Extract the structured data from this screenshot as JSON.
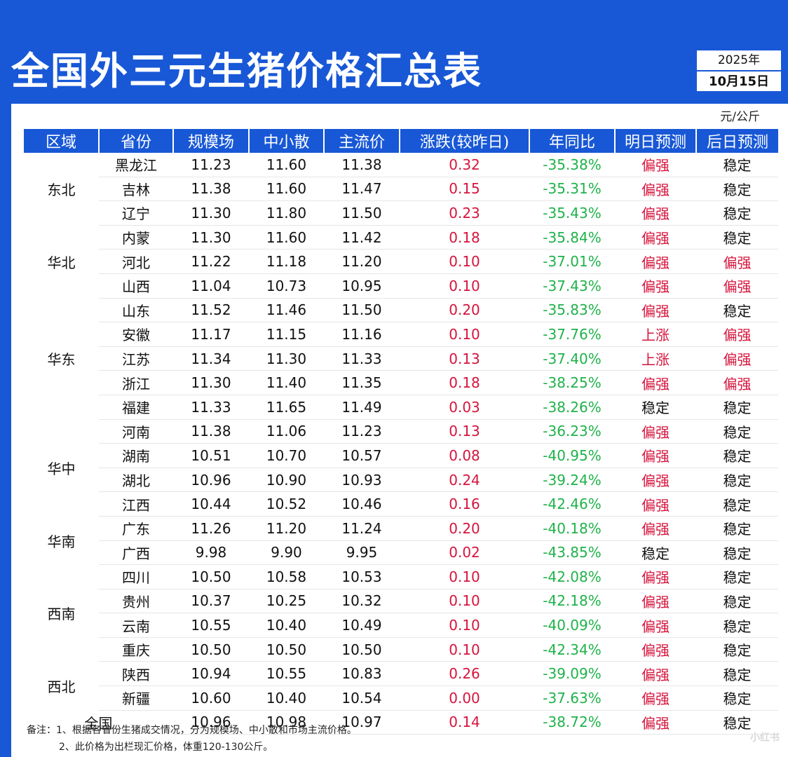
{
  "title": "全国外三元生猪价格汇总表",
  "date": {
    "year": "2025年",
    "day": "10月15日"
  },
  "unit": "元/公斤",
  "headers": [
    "区域",
    "省份",
    "规模场",
    "中小散",
    "主流价",
    "涨跌(较昨日)",
    "年同比",
    "明日预测",
    "后日预测"
  ],
  "regions": [
    {
      "name": "东北",
      "start": 0,
      "span": 3
    },
    {
      "name": "华北",
      "start": 3,
      "span": 3
    },
    {
      "name": "华东",
      "start": 6,
      "span": 5
    },
    {
      "name": "华中",
      "start": 11,
      "span": 4
    },
    {
      "name": "华南",
      "start": 15,
      "span": 2
    },
    {
      "name": "西南",
      "start": 17,
      "span": 4
    },
    {
      "name": "西北",
      "start": 21,
      "span": 2
    }
  ],
  "rows": [
    {
      "province": "黑龙江",
      "scale": "11.23",
      "small": "11.60",
      "main": "11.38",
      "change": "0.32",
      "yoy": "-35.38%",
      "tomorrow": "偏强",
      "after": "稳定"
    },
    {
      "province": "吉林",
      "scale": "11.38",
      "small": "11.60",
      "main": "11.47",
      "change": "0.15",
      "yoy": "-35.31%",
      "tomorrow": "偏强",
      "after": "稳定"
    },
    {
      "province": "辽宁",
      "scale": "11.30",
      "small": "11.80",
      "main": "11.50",
      "change": "0.23",
      "yoy": "-35.43%",
      "tomorrow": "偏强",
      "after": "稳定"
    },
    {
      "province": "内蒙",
      "scale": "11.30",
      "small": "11.60",
      "main": "11.42",
      "change": "0.18",
      "yoy": "-35.84%",
      "tomorrow": "偏强",
      "after": "稳定"
    },
    {
      "province": "河北",
      "scale": "11.22",
      "small": "11.18",
      "main": "11.20",
      "change": "0.10",
      "yoy": "-37.01%",
      "tomorrow": "偏强",
      "after": "偏强"
    },
    {
      "province": "山西",
      "scale": "11.04",
      "small": "10.73",
      "main": "10.95",
      "change": "0.10",
      "yoy": "-37.43%",
      "tomorrow": "偏强",
      "after": "偏强"
    },
    {
      "province": "山东",
      "scale": "11.52",
      "small": "11.46",
      "main": "11.50",
      "change": "0.20",
      "yoy": "-35.83%",
      "tomorrow": "偏强",
      "after": "稳定"
    },
    {
      "province": "安徽",
      "scale": "11.17",
      "small": "11.15",
      "main": "11.16",
      "change": "0.10",
      "yoy": "-37.76%",
      "tomorrow": "上涨",
      "after": "偏强"
    },
    {
      "province": "江苏",
      "scale": "11.34",
      "small": "11.30",
      "main": "11.33",
      "change": "0.13",
      "yoy": "-37.40%",
      "tomorrow": "上涨",
      "after": "偏强"
    },
    {
      "province": "浙江",
      "scale": "11.30",
      "small": "11.40",
      "main": "11.35",
      "change": "0.18",
      "yoy": "-38.25%",
      "tomorrow": "偏强",
      "after": "偏强"
    },
    {
      "province": "福建",
      "scale": "11.33",
      "small": "11.65",
      "main": "11.49",
      "change": "0.03",
      "yoy": "-38.26%",
      "tomorrow": "稳定",
      "after": "稳定"
    },
    {
      "province": "河南",
      "scale": "11.38",
      "small": "11.06",
      "main": "11.23",
      "change": "0.13",
      "yoy": "-36.23%",
      "tomorrow": "偏强",
      "after": "稳定"
    },
    {
      "province": "湖南",
      "scale": "10.51",
      "small": "10.70",
      "main": "10.57",
      "change": "0.08",
      "yoy": "-40.95%",
      "tomorrow": "偏强",
      "after": "稳定"
    },
    {
      "province": "湖北",
      "scale": "10.96",
      "small": "10.90",
      "main": "10.93",
      "change": "0.24",
      "yoy": "-39.24%",
      "tomorrow": "偏强",
      "after": "稳定"
    },
    {
      "province": "江西",
      "scale": "10.44",
      "small": "10.52",
      "main": "10.46",
      "change": "0.16",
      "yoy": "-42.46%",
      "tomorrow": "偏强",
      "after": "稳定"
    },
    {
      "province": "广东",
      "scale": "11.26",
      "small": "11.20",
      "main": "11.24",
      "change": "0.20",
      "yoy": "-40.18%",
      "tomorrow": "偏强",
      "after": "稳定"
    },
    {
      "province": "广西",
      "scale": "9.98",
      "small": "9.90",
      "main": "9.95",
      "change": "0.02",
      "yoy": "-43.85%",
      "tomorrow": "稳定",
      "after": "稳定"
    },
    {
      "province": "四川",
      "scale": "10.50",
      "small": "10.58",
      "main": "10.53",
      "change": "0.10",
      "yoy": "-42.08%",
      "tomorrow": "偏强",
      "after": "稳定"
    },
    {
      "province": "贵州",
      "scale": "10.37",
      "small": "10.25",
      "main": "10.32",
      "change": "0.10",
      "yoy": "-42.18%",
      "tomorrow": "偏强",
      "after": "稳定"
    },
    {
      "province": "云南",
      "scale": "10.55",
      "small": "10.40",
      "main": "10.49",
      "change": "0.10",
      "yoy": "-40.09%",
      "tomorrow": "偏强",
      "after": "稳定"
    },
    {
      "province": "重庆",
      "scale": "10.50",
      "small": "10.50",
      "main": "10.50",
      "change": "0.10",
      "yoy": "-42.34%",
      "tomorrow": "偏强",
      "after": "稳定"
    },
    {
      "province": "陕西",
      "scale": "10.94",
      "small": "10.55",
      "main": "10.83",
      "change": "0.26",
      "yoy": "-39.09%",
      "tomorrow": "偏强",
      "after": "稳定"
    },
    {
      "province": "新疆",
      "scale": "10.60",
      "small": "10.40",
      "main": "10.54",
      "change": "0.00",
      "yoy": "-37.63%",
      "tomorrow": "偏强",
      "after": "稳定"
    }
  ],
  "national": {
    "label": "全国",
    "scale": "10.96",
    "small": "10.98",
    "main": "10.97",
    "change": "0.14",
    "yoy": "-38.72%",
    "tomorrow": "偏强",
    "after": "稳定"
  },
  "notes": [
    "备注：1、根据各省份生猪成交情况，分为规模场、中小散和市场主流价格。",
    "2、此价格为出栏现汇价格，体重120-130公斤。"
  ],
  "watermark": "小红书",
  "colors": {
    "brand": "#1858d6",
    "up": "#d6143c",
    "down": "#1fb24a"
  }
}
